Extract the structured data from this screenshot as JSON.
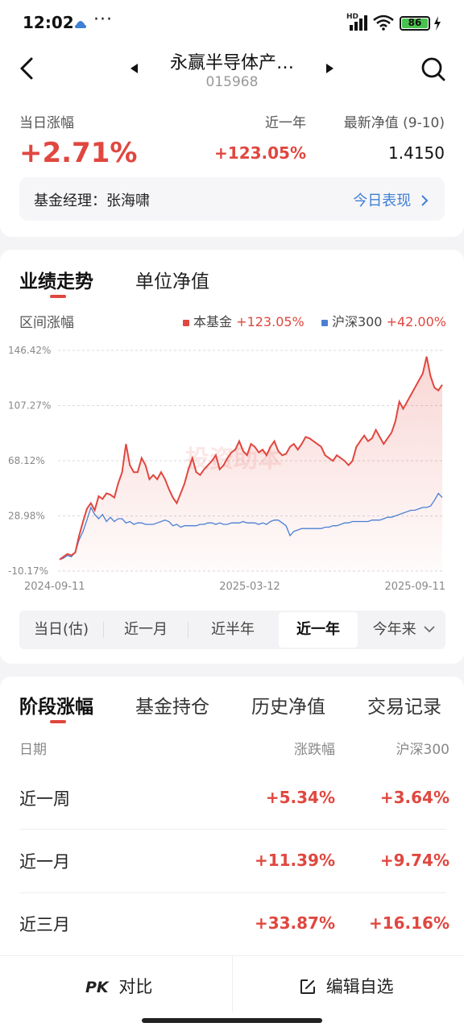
{
  "status_bar": {
    "time": "12:02",
    "dots": "···",
    "hd": "HD",
    "battery": "86"
  },
  "header": {
    "fund_name": "永赢半导体产…",
    "fund_code": "015968"
  },
  "summary": {
    "daily_label": "当日涨幅",
    "daily_value": "+2.71%",
    "year_label": "近一年",
    "year_value": "+123.05%",
    "nav_label": "最新净值 (9-10)",
    "nav_value": "1.4150",
    "manager": "基金经理：张海啸",
    "today_link": "今日表现"
  },
  "chart_tabs": [
    "业绩走势",
    "单位净值"
  ],
  "chart_meta": {
    "range_label": "区间涨幅",
    "fund_legend": "本基金",
    "fund_legend_value": "+123.05%",
    "index_legend": "沪深300",
    "index_legend_value": "+42.00%",
    "watermark": "投资助本"
  },
  "chart_data": {
    "type": "line",
    "y_ticks": [
      "146.42%",
      "107.27%",
      "68.12%",
      "28.98%",
      "-10.17%"
    ],
    "y_tick_values": [
      146.42,
      107.27,
      68.12,
      28.98,
      -10.17
    ],
    "x_ticks": [
      "2024-09-11",
      "2025-03-12",
      "2025-09-11"
    ],
    "ylim": [
      -10.17,
      146.42
    ],
    "series": [
      {
        "name": "本基金",
        "color": "#e0473f",
        "values": [
          -2,
          0,
          2,
          1,
          3,
          15,
          25,
          34,
          38,
          33,
          43,
          41,
          45,
          44,
          42,
          52,
          60,
          80,
          65,
          60,
          60,
          70,
          65,
          55,
          58,
          55,
          60,
          55,
          48,
          42,
          38,
          45,
          52,
          62,
          70,
          60,
          58,
          62,
          65,
          68,
          72,
          62,
          65,
          70,
          74,
          76,
          82,
          75,
          72,
          80,
          78,
          74,
          76,
          72,
          78,
          82,
          75,
          72,
          73,
          78,
          80,
          76,
          80,
          85,
          84,
          82,
          80,
          78,
          72,
          70,
          68,
          72,
          70,
          68,
          65,
          68,
          78,
          82,
          86,
          82,
          84,
          90,
          85,
          80,
          84,
          88,
          96,
          110,
          105,
          110,
          115,
          120,
          125,
          130,
          142,
          128,
          120,
          118,
          122
        ]
      },
      {
        "name": "沪深300",
        "color": "#4a7fd6",
        "values": [
          -2,
          -1,
          1,
          0,
          3,
          12,
          18,
          26,
          35,
          30,
          27,
          30,
          25,
          28,
          25,
          27,
          27,
          24,
          25,
          23,
          24,
          24,
          23,
          23,
          23,
          24,
          25,
          26,
          25,
          22,
          23,
          21,
          22,
          22,
          22,
          22,
          23,
          23,
          24,
          24,
          23,
          24,
          23,
          23,
          24,
          24,
          24,
          25,
          24,
          24,
          24,
          23,
          24,
          23,
          25,
          26,
          26,
          24,
          22,
          15,
          18,
          19,
          20,
          20,
          20,
          20,
          20,
          20,
          21,
          21,
          22,
          22,
          23,
          24,
          24,
          25,
          25,
          25,
          25,
          25,
          26,
          26,
          26,
          27,
          28,
          28,
          29,
          30,
          31,
          32,
          33,
          33,
          34,
          35,
          35,
          36,
          40,
          45,
          42
        ]
      }
    ]
  },
  "ranges": [
    "当日(估)",
    "近一月",
    "近半年",
    "近一年",
    "今年来"
  ],
  "active_range": 3,
  "stage_tabs": [
    "阶段涨幅",
    "基金持仓",
    "历史净值",
    "交易记录"
  ],
  "stage_table": {
    "headers": [
      "日期",
      "涨跌幅",
      "沪深300"
    ],
    "rows": [
      {
        "label": "近一周",
        "fund": "+5.34%",
        "index": "+3.64%"
      },
      {
        "label": "近一月",
        "fund": "+11.39%",
        "index": "+9.74%"
      },
      {
        "label": "近三月",
        "fund": "+33.87%",
        "index": "+16.16%"
      }
    ]
  },
  "bottom_bar": {
    "compare": "对比",
    "compare_icon_text": "PK",
    "edit": "编辑自选"
  }
}
